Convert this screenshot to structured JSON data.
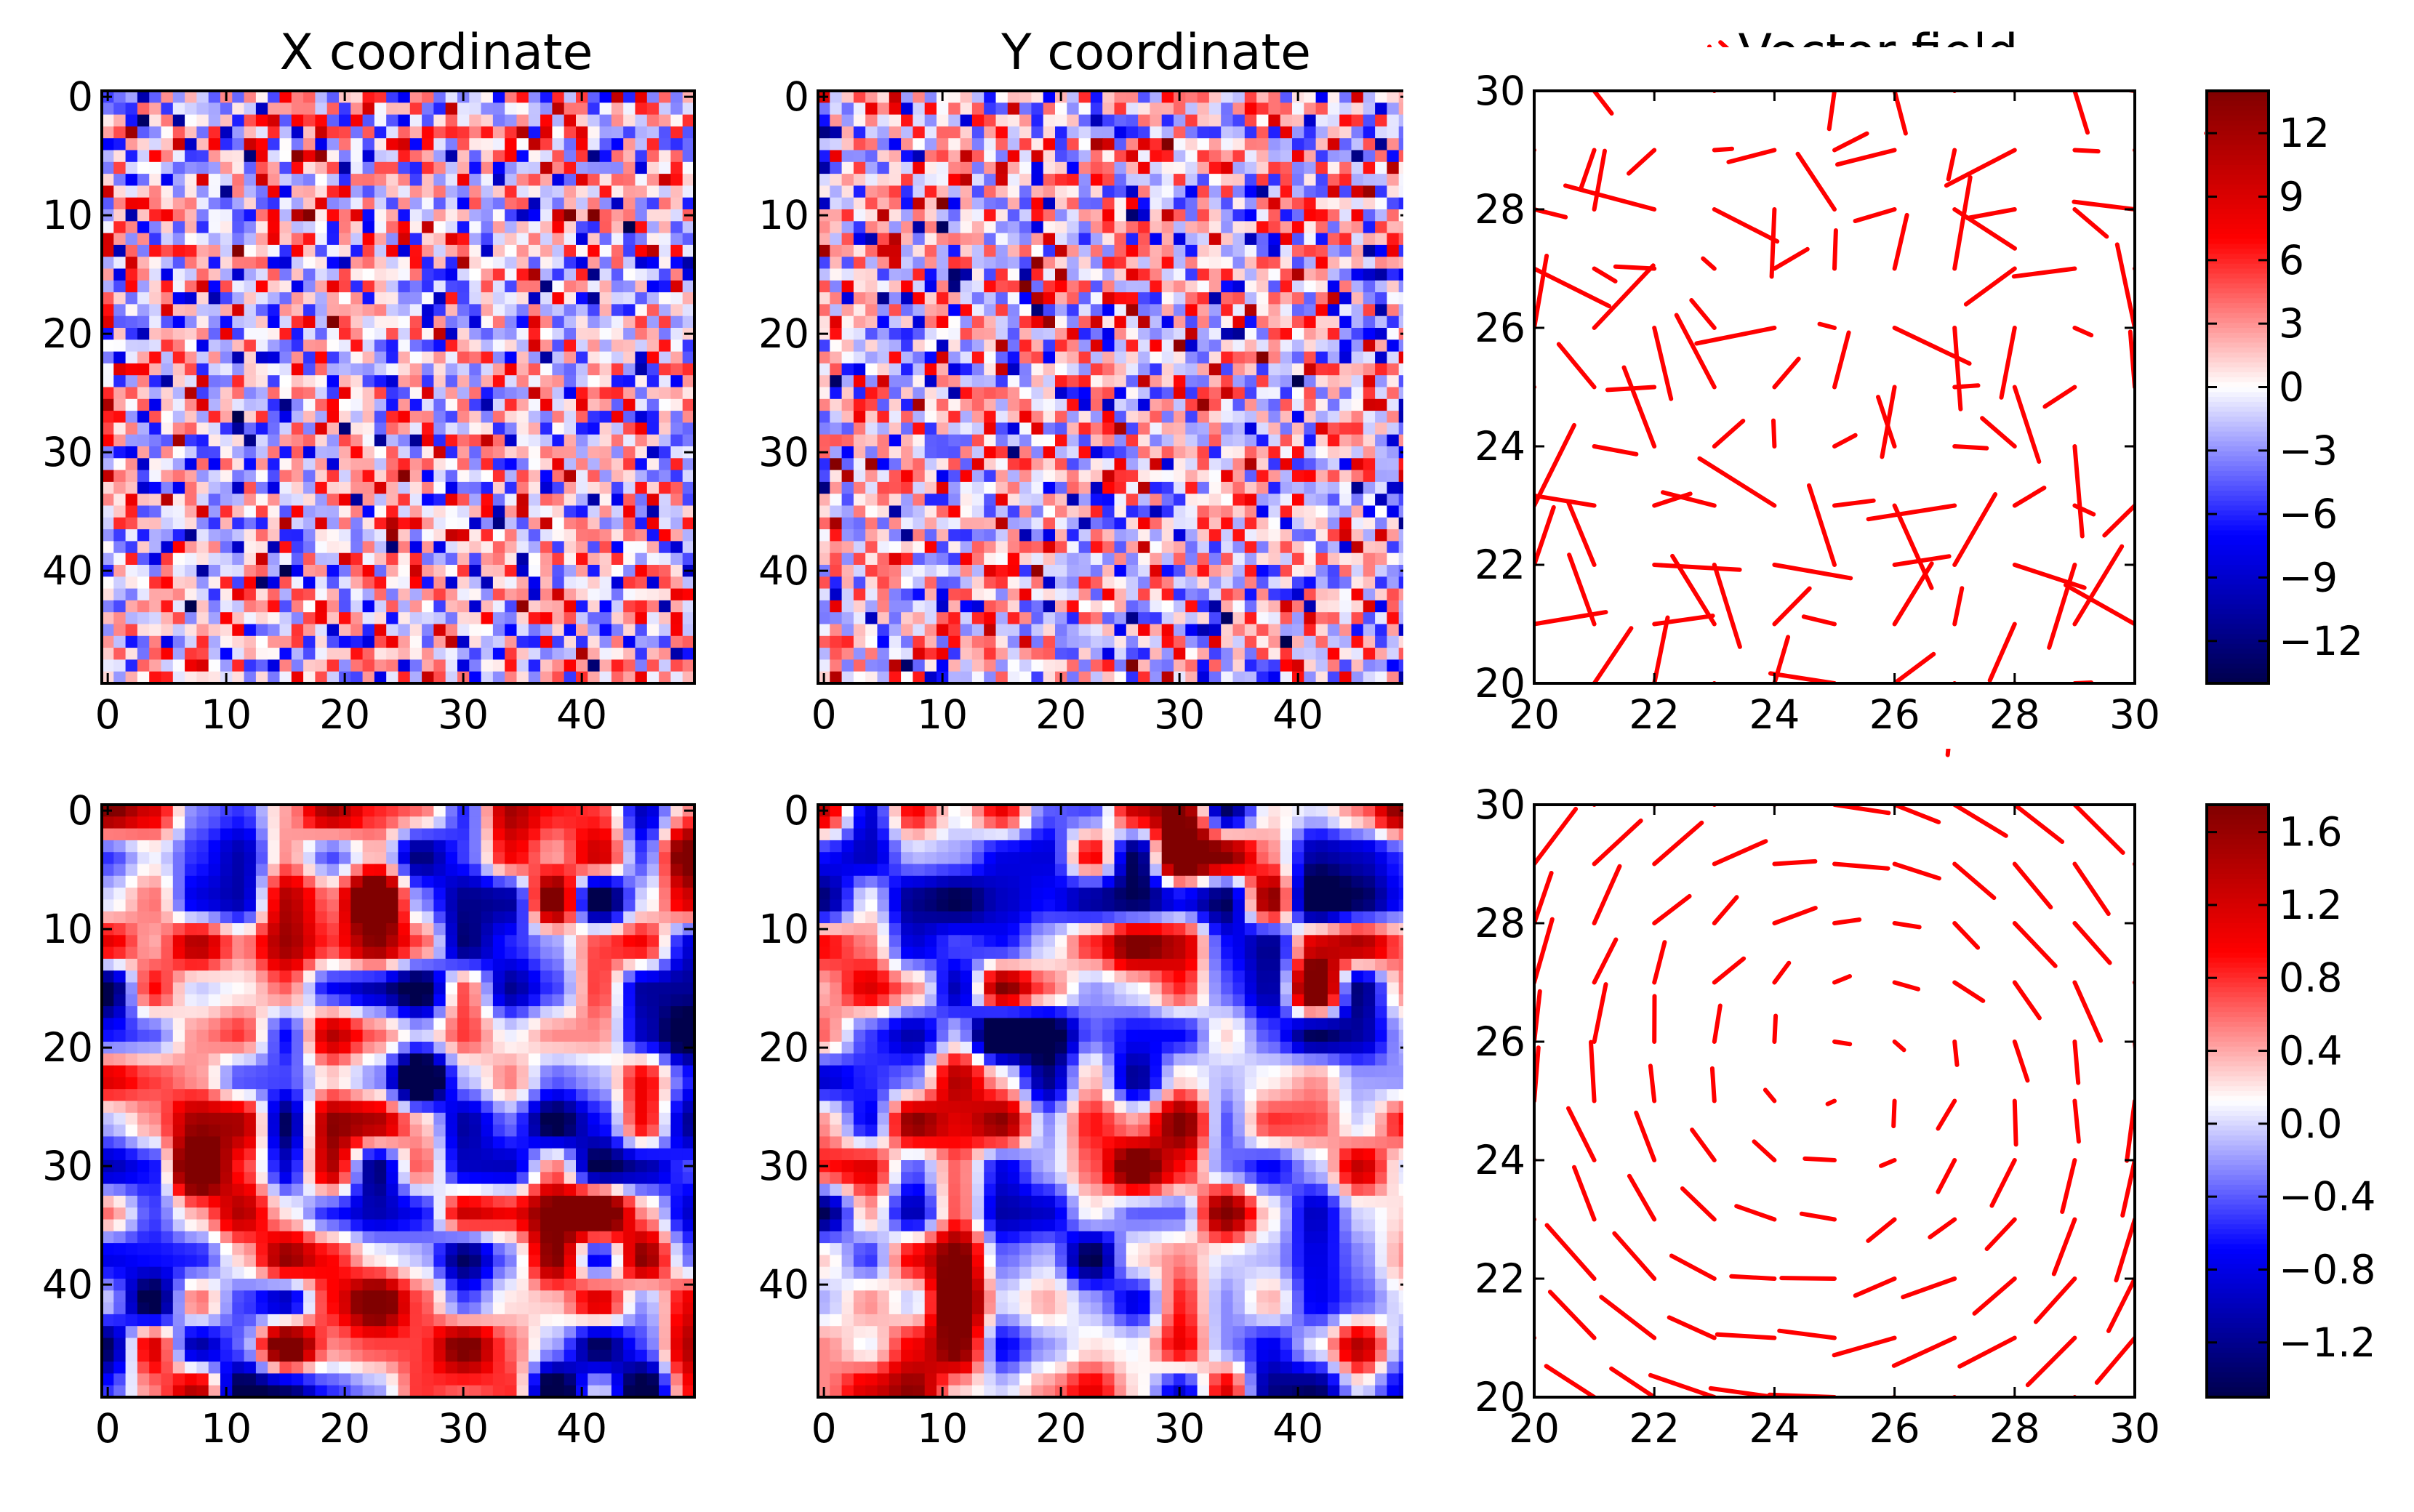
{
  "figure": {
    "background": "#ffffff",
    "colormap": {
      "name": "seismic",
      "stops": [
        "#00004c",
        "#0000ff",
        "#ffffff",
        "#ff0000",
        "#800000"
      ]
    },
    "arrow_color": "#ff0000"
  },
  "chart_data": [
    {
      "type": "heatmap",
      "title": "X coordinate",
      "rows": 50,
      "cols": 50,
      "texture": "noise",
      "value_range": [
        -14,
        14
      ],
      "xticks": [
        0,
        10,
        20,
        30,
        40
      ],
      "yticks": [
        0,
        10,
        20,
        30,
        40
      ],
      "xlim": [
        -0.5,
        49.5
      ],
      "ylim": [
        49.5,
        -0.5
      ]
    },
    {
      "type": "heatmap",
      "title": "Y coordinate",
      "rows": 50,
      "cols": 50,
      "texture": "noise",
      "value_range": [
        -14,
        14
      ],
      "xticks": [
        0,
        10,
        20,
        30,
        40
      ],
      "yticks": [
        0,
        10,
        20,
        30,
        40
      ],
      "xlim": [
        -0.5,
        49.5
      ],
      "ylim": [
        49.5,
        -0.5
      ]
    },
    {
      "type": "quiver",
      "title": "Vector field",
      "xlim": [
        20,
        30
      ],
      "ylim": [
        20,
        30
      ],
      "xticks": [
        20,
        22,
        24,
        26,
        28,
        30
      ],
      "yticks": [
        20,
        22,
        24,
        26,
        28,
        30
      ],
      "field": "noise"
    },
    {
      "type": "heatmap",
      "title": "",
      "rows": 50,
      "cols": 50,
      "texture": "smooth",
      "value_range": [
        -1.5,
        1.75
      ],
      "xticks": [
        0,
        10,
        20,
        30,
        40
      ],
      "yticks": [
        0,
        10,
        20,
        30,
        40
      ],
      "xlim": [
        -0.5,
        49.5
      ],
      "ylim": [
        49.5,
        -0.5
      ]
    },
    {
      "type": "heatmap",
      "title": "",
      "rows": 50,
      "cols": 50,
      "texture": "smooth",
      "value_range": [
        -1.5,
        1.75
      ],
      "xticks": [
        0,
        10,
        20,
        30,
        40
      ],
      "yticks": [
        0,
        10,
        20,
        30,
        40
      ],
      "xlim": [
        -0.5,
        49.5
      ],
      "ylim": [
        49.5,
        -0.5
      ]
    },
    {
      "type": "quiver",
      "title": "",
      "xlim": [
        20,
        30
      ],
      "ylim": [
        20,
        30
      ],
      "xticks": [
        20,
        22,
        24,
        26,
        28,
        30
      ],
      "yticks": [
        20,
        22,
        24,
        26,
        28,
        30
      ],
      "field": "vortex",
      "vortex_center": [
        25,
        25.5
      ]
    }
  ],
  "colorbars": [
    {
      "range": [
        -14,
        14
      ],
      "ticks": [
        12,
        9,
        6,
        3,
        0,
        -3,
        -6,
        -9,
        -12
      ],
      "tick_labels": [
        "12",
        "9",
        "6",
        "3",
        "0",
        "−3",
        "−6",
        "−9",
        "−12"
      ]
    },
    {
      "range": [
        -1.5,
        1.75
      ],
      "ticks": [
        1.6,
        1.2,
        0.8,
        0.4,
        0.0,
        -0.4,
        -0.8,
        -1.2
      ],
      "tick_labels": [
        "1.6",
        "1.2",
        "0.8",
        "0.4",
        "0.0",
        "−0.4",
        "−0.8",
        "−1.2"
      ]
    }
  ]
}
